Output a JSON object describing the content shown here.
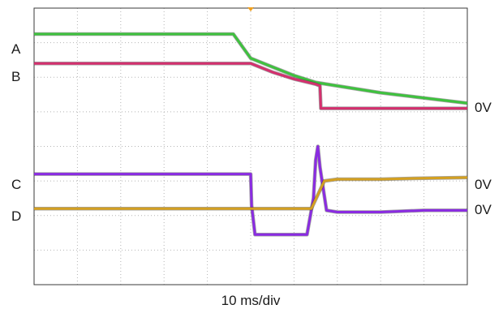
{
  "chart_data": {
    "type": "line",
    "xlabel": "10 ms/div",
    "x_divisions": 10,
    "y_divisions": 8,
    "grid": true,
    "trigger_marker_color": "#f0a020",
    "channels": [
      {
        "label": "A",
        "zero_label": "0V",
        "color": "#3ec23e",
        "x": [
          0,
          4.6,
          5.0,
          5.5,
          6.0,
          6.5,
          7.0,
          8.0,
          9.0,
          10.0
        ],
        "y": [
          7.25,
          7.25,
          6.55,
          6.3,
          6.05,
          5.85,
          5.75,
          5.55,
          5.4,
          5.25
        ]
      },
      {
        "label": "B",
        "zero_label": "",
        "color": "#d4306e",
        "x": [
          0,
          4.9,
          5.0,
          5.5,
          6.0,
          6.5,
          6.6,
          6.62,
          7.0,
          8.0,
          9.0,
          10.0
        ],
        "y": [
          6.4,
          6.4,
          6.4,
          6.15,
          5.95,
          5.8,
          5.75,
          5.1,
          5.1,
          5.1,
          5.1,
          5.1
        ]
      },
      {
        "label": "C",
        "zero_label": "0V",
        "color": "#8a2be2",
        "x": [
          0,
          5.0,
          5.02,
          5.1,
          6.3,
          6.45,
          6.5,
          6.55,
          6.6,
          6.75,
          7.0,
          8.0,
          9.0,
          10.0
        ],
        "y": [
          3.2,
          3.2,
          2.3,
          1.45,
          1.45,
          2.5,
          3.6,
          4.0,
          3.4,
          2.15,
          2.1,
          2.1,
          2.15,
          2.15
        ]
      },
      {
        "label": "D",
        "zero_label": "0V",
        "color": "#d4a020",
        "x": [
          0,
          6.4,
          6.7,
          7.0,
          8.0,
          9.0,
          10.0
        ],
        "y": [
          2.2,
          2.2,
          3.0,
          3.05,
          3.05,
          3.08,
          3.1
        ]
      }
    ]
  }
}
